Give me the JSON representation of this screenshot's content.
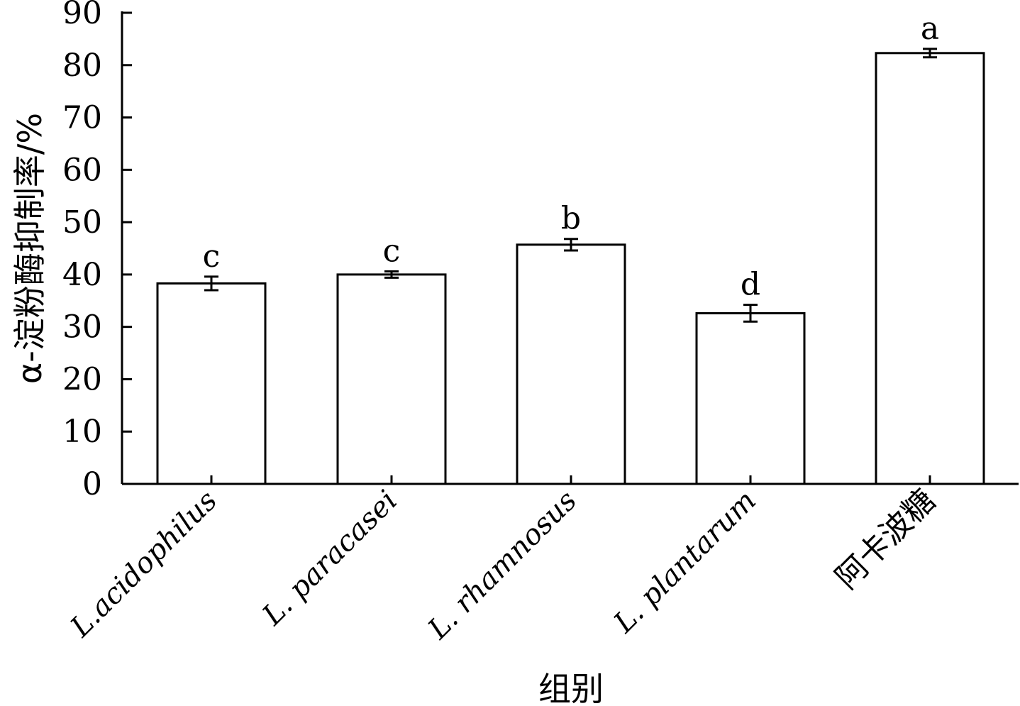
{
  "chart_data": {
    "type": "bar",
    "title": "",
    "xlabel": "组别",
    "ylabel": "α-淀粉酶抑制率/%",
    "ylim": [
      0,
      90
    ],
    "yticks": [
      0,
      10,
      20,
      30,
      40,
      50,
      60,
      70,
      80,
      90
    ],
    "categories": [
      "L.acidophilus",
      "L. paracasei",
      "L. rhamnosus",
      "L. plantarum",
      "阿卡波糖"
    ],
    "values": [
      38.3,
      40.0,
      45.7,
      32.6,
      82.3
    ],
    "errors": [
      1.3,
      0.6,
      1.1,
      1.6,
      0.8
    ],
    "significance": [
      "c",
      "c",
      "b",
      "d",
      "a"
    ],
    "grid": false,
    "legend": "none"
  }
}
